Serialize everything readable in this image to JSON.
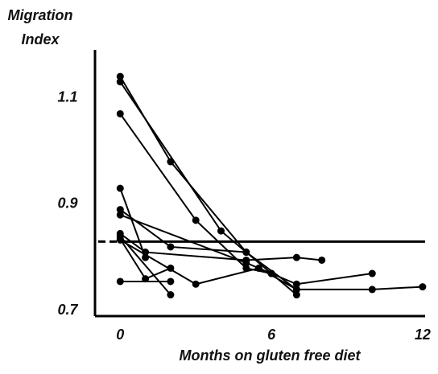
{
  "chart_data": {
    "type": "line",
    "ylabel": [
      "Migration",
      "Index"
    ],
    "xlabel": "Months on gluten free diet",
    "color": "#000000",
    "xlim": [
      -1,
      12.1
    ],
    "ylim": [
      0.69,
      1.19
    ],
    "xticks": [
      0,
      6,
      12
    ],
    "yticks": [
      0.7,
      0.9,
      1.1
    ],
    "reference_line": 0.83,
    "series": [
      {
        "x": [
          0,
          2,
          5,
          7
        ],
        "values": [
          1.14,
          0.98,
          0.81,
          0.74
        ]
      },
      {
        "x": [
          0,
          4,
          7
        ],
        "values": [
          1.13,
          0.85,
          0.73
        ]
      },
      {
        "x": [
          0,
          3,
          5,
          6
        ],
        "values": [
          1.07,
          0.87,
          0.78,
          0.77
        ]
      },
      {
        "x": [
          0,
          1
        ],
        "values": [
          0.93,
          0.8
        ]
      },
      {
        "x": [
          0,
          2,
          5
        ],
        "values": [
          0.89,
          0.82,
          0.81
        ]
      },
      {
        "x": [
          0,
          5,
          6,
          7,
          10
        ],
        "values": [
          0.88,
          0.79,
          0.77,
          0.75,
          0.77
        ]
      },
      {
        "x": [
          0,
          2
        ],
        "values": [
          0.84,
          0.73
        ]
      },
      {
        "x": [
          0,
          1,
          2
        ],
        "values": [
          0.835,
          0.76,
          0.78
        ]
      },
      {
        "x": [
          0,
          1,
          5,
          7,
          8
        ],
        "values": [
          0.845,
          0.81,
          0.795,
          0.8,
          0.795
        ]
      },
      {
        "x": [
          0,
          2
        ],
        "values": [
          0.755,
          0.755
        ]
      },
      {
        "x": [
          0,
          3,
          5.5,
          7,
          10,
          12
        ],
        "values": [
          0.833,
          0.75,
          0.78,
          0.74,
          0.74,
          0.745
        ]
      }
    ]
  }
}
